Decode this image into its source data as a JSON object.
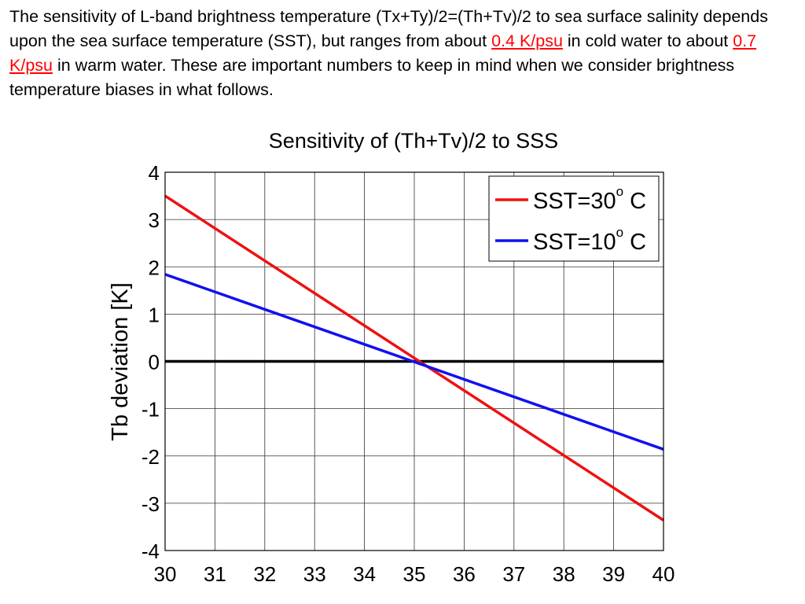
{
  "intro": {
    "part1": "The sensitivity of L-band brightness temperature (Tx+Ty)/2=(Th+Tv)/2  to sea surface salinity depends upon the sea surface temperature (SST), but ranges from about ",
    "highlight1": "0.4 K/psu",
    "part2": " in cold water to about ",
    "highlight2": "0.7 K/psu",
    "part3": " in warm water. These are important numbers to keep in mind when we consider brightness temperature biases in what follows.",
    "highlight_color": "#ff0000"
  },
  "chart_data": {
    "type": "line",
    "title": "Sensitivity of (Th+Tv)/2 to SSS",
    "xlabel": "",
    "ylabel": "Tb deviation [K]",
    "xlim": [
      30,
      40
    ],
    "ylim": [
      -4,
      4
    ],
    "x_ticks": [
      30,
      31,
      32,
      33,
      34,
      35,
      36,
      37,
      38,
      39,
      40
    ],
    "y_ticks": [
      -4,
      -3,
      -2,
      -1,
      0,
      1,
      2,
      3,
      4
    ],
    "grid": true,
    "legend_position": "top-right",
    "series": [
      {
        "name_main": "SST=30",
        "name_sup": "o",
        "name_unit": " C",
        "color": "#ee1111",
        "x": [
          30,
          40
        ],
        "y": [
          3.5,
          -3.36
        ]
      },
      {
        "name_main": "SST=10",
        "name_sup": "o",
        "name_unit": " C",
        "color": "#1111ee",
        "x": [
          30,
          40
        ],
        "y": [
          1.84,
          -1.86
        ]
      }
    ],
    "reference_line": {
      "y": 0,
      "color": "#000000"
    }
  }
}
